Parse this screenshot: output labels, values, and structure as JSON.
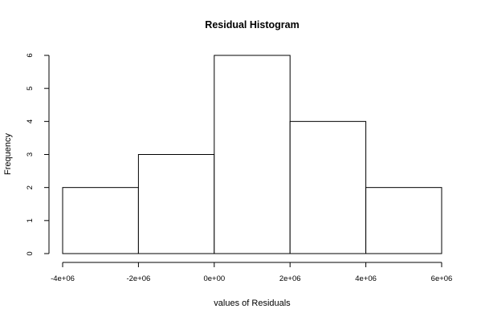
{
  "chart_data": {
    "type": "bar",
    "title": "Residual Histogram",
    "xlabel": "values of Residuals",
    "ylabel": "Frequency",
    "bins": [
      {
        "from": -4000000,
        "to": -2000000,
        "count": 2
      },
      {
        "from": -2000000,
        "to": 0,
        "count": 3
      },
      {
        "from": 0,
        "to": 2000000,
        "count": 6
      },
      {
        "from": 2000000,
        "to": 4000000,
        "count": 4
      },
      {
        "from": 4000000,
        "to": 6000000,
        "count": 2
      }
    ],
    "xlim": [
      -4000000,
      6000000
    ],
    "ylim": [
      0,
      6
    ],
    "x_ticks": [
      -4000000,
      -2000000,
      0,
      2000000,
      4000000,
      6000000
    ],
    "x_tick_labels": [
      "-4e+06",
      "-2e+06",
      "0e+00",
      "2e+06",
      "4e+06",
      "6e+06"
    ],
    "y_ticks": [
      0,
      1,
      2,
      3,
      4,
      5,
      6
    ],
    "y_tick_labels": [
      "0",
      "1",
      "2",
      "3",
      "4",
      "5",
      "6"
    ],
    "grid": false,
    "bar_fill": "#ffffff",
    "bar_stroke": "#000000"
  }
}
